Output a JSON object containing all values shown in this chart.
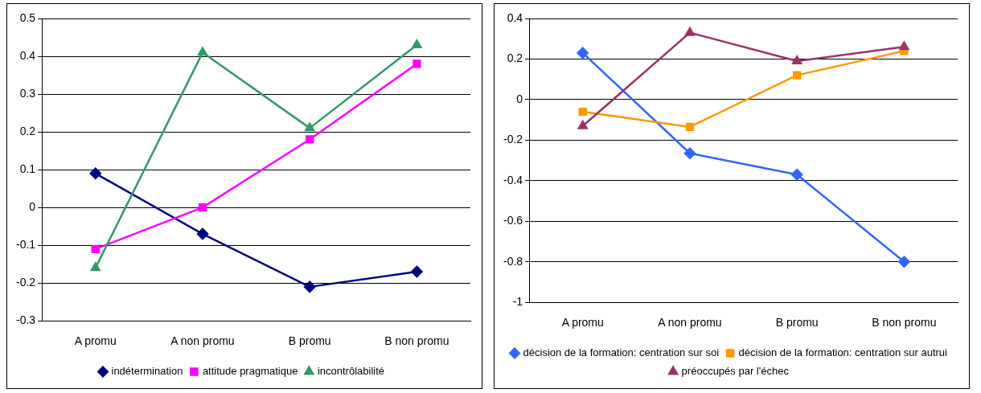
{
  "chart_data": [
    {
      "type": "line",
      "categories": [
        "A promu",
        "A non promu",
        "B promu",
        "B non promu"
      ],
      "ylim": [
        -0.3,
        0.5
      ],
      "yticks": [
        -0.3,
        -0.2,
        -0.1,
        0,
        0.1,
        0.2,
        0.3,
        0.4,
        0.5
      ],
      "grid": "y",
      "legend": "bottom",
      "line_style": "solid",
      "series": [
        {
          "name": "indétermination",
          "color": "#000080",
          "marker": "diamond",
          "values": [
            0.09,
            -0.07,
            -0.21,
            -0.17
          ]
        },
        {
          "name": "attitude pragmatique",
          "color": "#ff00ff",
          "marker": "square",
          "values": [
            -0.11,
            0.0,
            0.18,
            0.38
          ]
        },
        {
          "name": "incontrôlabilité",
          "color": "#339966",
          "marker": "triangle",
          "values": [
            -0.16,
            0.41,
            0.21,
            0.43
          ]
        }
      ]
    },
    {
      "type": "line",
      "categories": [
        "A promu",
        "A non promu",
        "B promu",
        "B non promu"
      ],
      "ylim": [
        -1,
        0.4
      ],
      "yticks": [
        -1,
        -0.8,
        -0.6,
        -0.4,
        -0.2,
        0,
        0.2,
        0.4
      ],
      "grid": "y",
      "legend": "bottom",
      "line_style": "solid",
      "series": [
        {
          "name": "décision de la formation: centration sur soi",
          "color": "#3366ff",
          "marker": "diamond",
          "values": [
            0.23,
            -0.265,
            -0.37,
            -0.8
          ]
        },
        {
          "name": "décision de la formation: centration sur autrui",
          "color": "#ff9900",
          "marker": "square",
          "values": [
            -0.06,
            -0.135,
            0.12,
            0.24
          ]
        },
        {
          "name": "préoccupés par l'échec",
          "color": "#993366",
          "marker": "triangle",
          "values": [
            -0.13,
            0.33,
            0.19,
            0.26
          ]
        }
      ]
    }
  ]
}
